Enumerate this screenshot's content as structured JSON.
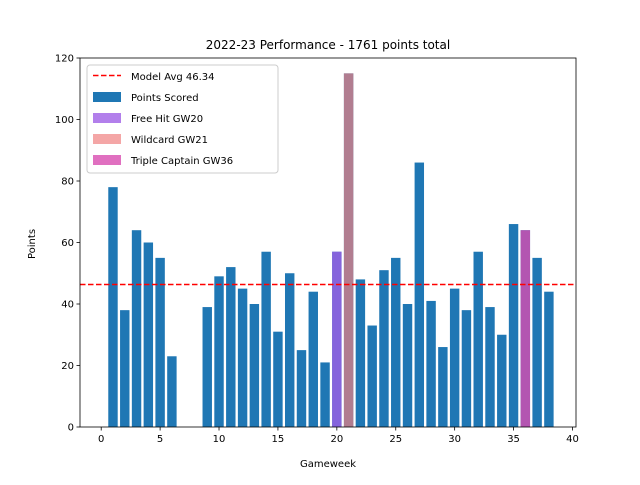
{
  "chart_data": {
    "type": "bar",
    "title": "2022-23 Performance - 1761 points total",
    "xlabel": "Gameweek",
    "ylabel": "Points",
    "xlim": [
      -1.8,
      40.3
    ],
    "ylim": [
      0,
      120
    ],
    "xticks": [
      0,
      5,
      10,
      15,
      20,
      25,
      30,
      35,
      40
    ],
    "yticks": [
      0,
      20,
      40,
      60,
      80,
      100,
      120
    ],
    "grid": false,
    "legend_position": "top-left",
    "reference_line": {
      "name": "Model Avg 46.34",
      "value": 46.34,
      "color": "#ff0000",
      "style": "dashed"
    },
    "series": [
      {
        "name": "Points Scored",
        "color": "#1f77b4",
        "x": [
          1,
          2,
          3,
          4,
          5,
          6,
          9,
          10,
          11,
          12,
          13,
          14,
          15,
          16,
          17,
          18,
          19,
          20,
          21,
          22,
          23,
          24,
          25,
          26,
          27,
          28,
          29,
          30,
          31,
          32,
          33,
          34,
          35,
          36,
          37,
          38
        ],
        "values": [
          78,
          38,
          64,
          60,
          55,
          23,
          39,
          49,
          52,
          45,
          40,
          57,
          31,
          50,
          25,
          44,
          21,
          57,
          115,
          48,
          33,
          51,
          55,
          40,
          86,
          41,
          26,
          45,
          38,
          57,
          39,
          30,
          66,
          64,
          55,
          44
        ]
      },
      {
        "name": "Free Hit GW20",
        "color": "#9f5fe6",
        "opacity": 0.8,
        "x": [
          20
        ],
        "values": [
          57
        ]
      },
      {
        "name": "Wildcard GW21",
        "color": "#f08080",
        "opacity": 0.7,
        "x": [
          21
        ],
        "values": [
          115
        ]
      },
      {
        "name": "Triple Captain GW36",
        "color": "#d84cb0",
        "opacity": 0.8,
        "x": [
          36
        ],
        "values": [
          64
        ]
      }
    ]
  }
}
